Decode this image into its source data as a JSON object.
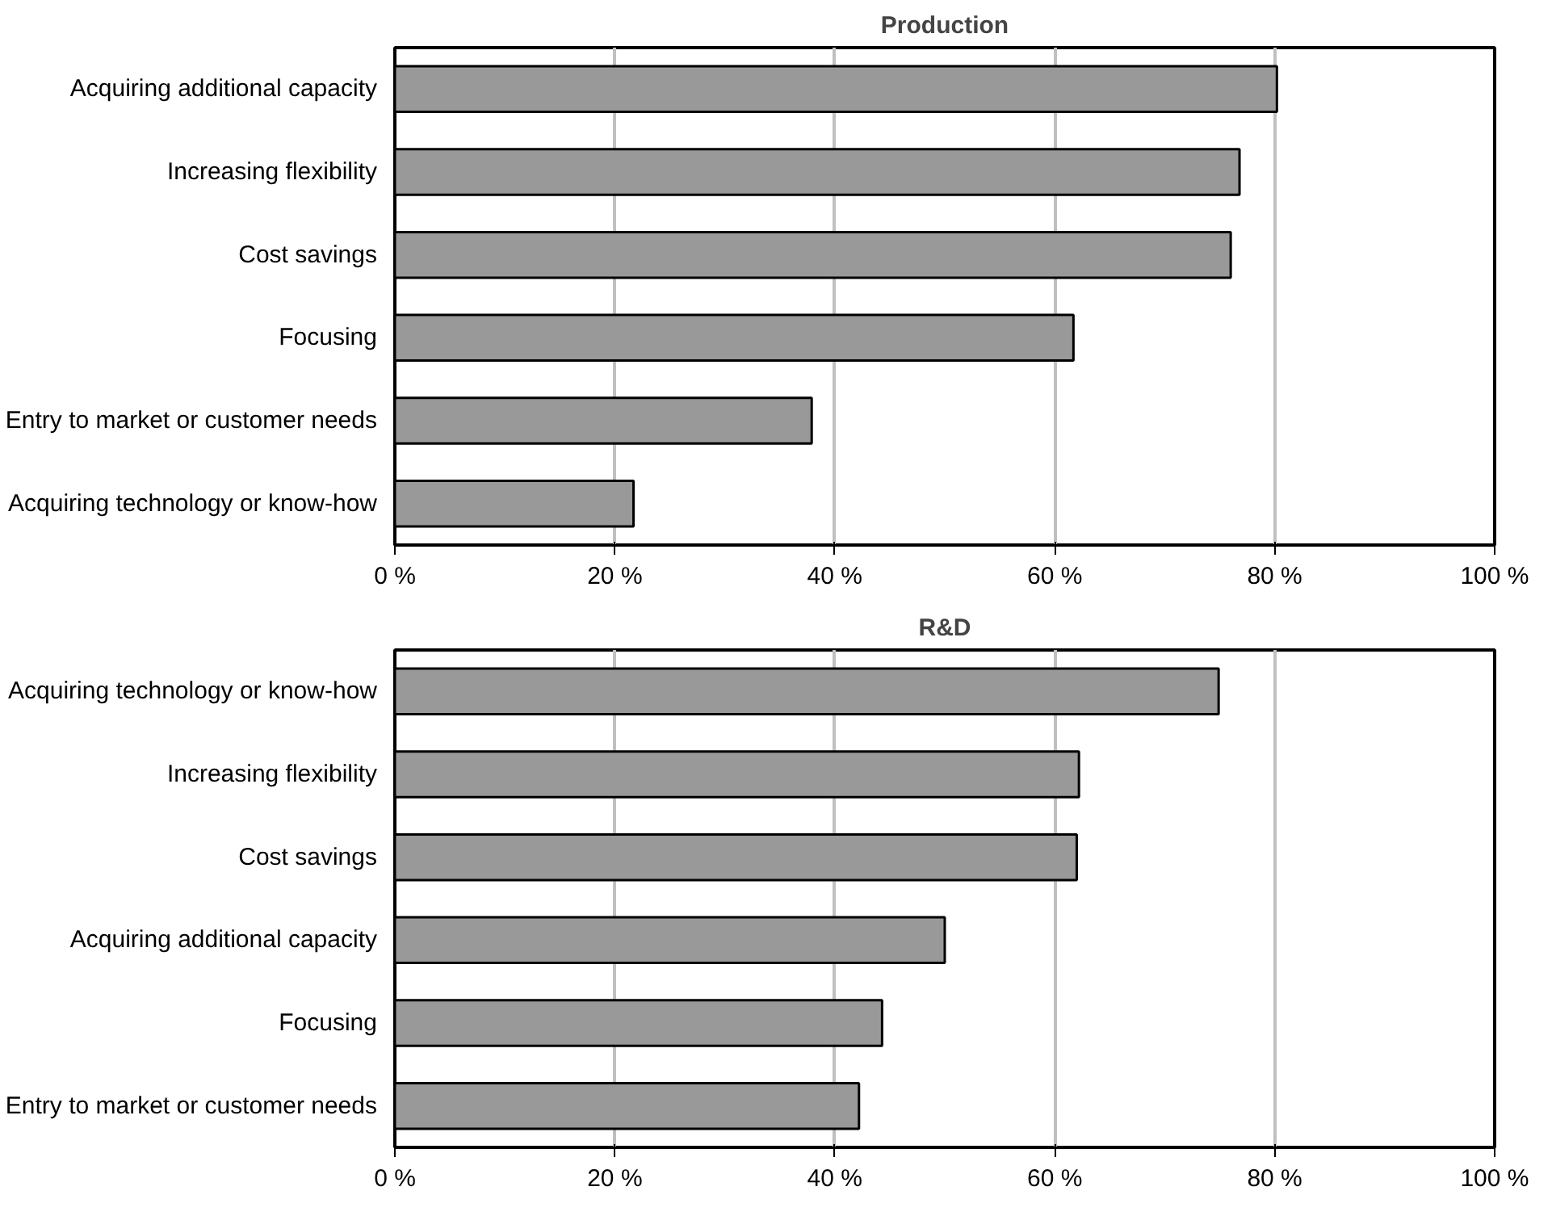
{
  "chart_data": [
    {
      "type": "bar",
      "orientation": "horizontal",
      "title": "Production",
      "categories": [
        "Acquiring additional capacity",
        "Increasing flexibility",
        "Cost savings",
        "Focusing",
        "Entry to market or customer needs",
        "Acquiring technology or know-how"
      ],
      "values": [
        80.2,
        76.8,
        76.0,
        61.7,
        37.9,
        21.7
      ],
      "color": "#999999",
      "xlim": [
        0,
        100
      ],
      "xticks": [
        {
          "value": 0,
          "label": "0 %"
        },
        {
          "value": 20,
          "label": "20 %"
        },
        {
          "value": 40,
          "label": "40 %"
        },
        {
          "value": 60,
          "label": "60 %"
        },
        {
          "value": 80,
          "label": "80 %"
        },
        {
          "value": 100,
          "label": "100 %"
        }
      ],
      "grid": "x"
    },
    {
      "type": "bar",
      "orientation": "horizontal",
      "title": "R&D",
      "categories": [
        "Acquiring technology or know-how",
        "Increasing flexibility",
        "Cost savings",
        "Acquiring additional capacity",
        "Focusing",
        "Entry to market or customer needs"
      ],
      "values": [
        74.9,
        62.2,
        62.0,
        50.0,
        44.3,
        42.2
      ],
      "color": "#999999",
      "xlim": [
        0,
        100
      ],
      "xticks": [
        {
          "value": 0,
          "label": "0 %"
        },
        {
          "value": 20,
          "label": "20 %"
        },
        {
          "value": 40,
          "label": "40 %"
        },
        {
          "value": 60,
          "label": "60 %"
        },
        {
          "value": 80,
          "label": "80 %"
        },
        {
          "value": 100,
          "label": "100 %"
        }
      ],
      "grid": "x"
    }
  ]
}
